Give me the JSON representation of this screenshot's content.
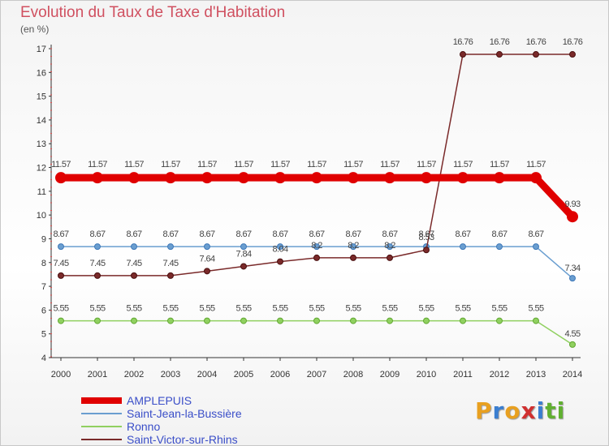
{
  "header": {
    "title": "Evolution du Taux de Taxe d'Habitation",
    "subtitle": "(en %)"
  },
  "chart_data": {
    "type": "line",
    "title": "Evolution du Taux de Taxe d'Habitation",
    "ylabel": "(en %)",
    "xlabel": "",
    "ylim": [
      4,
      17
    ],
    "yticks": [
      4,
      5,
      6,
      7,
      8,
      9,
      10,
      11,
      12,
      13,
      14,
      15,
      16,
      17
    ],
    "x": [
      2000,
      2001,
      2002,
      2003,
      2004,
      2005,
      2006,
      2007,
      2008,
      2009,
      2010,
      2011,
      2012,
      2013,
      2014
    ],
    "grid": false,
    "series": [
      {
        "name": "AMPLEPUIS",
        "color": "#e00000",
        "values": [
          11.57,
          11.57,
          11.57,
          11.57,
          11.57,
          11.57,
          11.57,
          11.57,
          11.57,
          11.57,
          11.57,
          11.57,
          11.57,
          11.57,
          9.93
        ],
        "labels": [
          "11.57",
          "11.57",
          "11.57",
          "11.57",
          "11.57",
          "11.57",
          "11.57",
          "11.57",
          "11.57",
          "11.57",
          "11.57",
          "11.57",
          "11.57",
          "11.57",
          "9.93"
        ]
      },
      {
        "name": "Saint-Jean-la-Bussière",
        "color": "#6a9ed0",
        "values": [
          8.67,
          8.67,
          8.67,
          8.67,
          8.67,
          8.67,
          8.67,
          8.67,
          8.67,
          8.67,
          8.67,
          8.67,
          8.67,
          8.67,
          7.34
        ],
        "labels": [
          "8.67",
          "8.67",
          "8.67",
          "8.67",
          "8.67",
          "8.67",
          "8.67",
          "8.67",
          "8.67",
          "8.67",
          "8.67",
          "8.67",
          "8.67",
          "8.67",
          "7.34"
        ]
      },
      {
        "name": "Ronno",
        "color": "#90d060",
        "values": [
          5.55,
          5.55,
          5.55,
          5.55,
          5.55,
          5.55,
          5.55,
          5.55,
          5.55,
          5.55,
          5.55,
          5.55,
          5.55,
          5.55,
          4.55
        ],
        "labels": [
          "5.55",
          "5.55",
          "5.55",
          "5.55",
          "5.55",
          "5.55",
          "5.55",
          "5.55",
          "5.55",
          "5.55",
          "5.55",
          "5.55",
          "5.55",
          "5.55",
          "4.55"
        ]
      },
      {
        "name": "Saint-Victor-sur-Rhins",
        "color": "#7a2a2a",
        "values": [
          7.45,
          7.45,
          7.45,
          7.45,
          7.64,
          7.84,
          8.04,
          8.2,
          8.2,
          8.2,
          8.53,
          16.76,
          16.76,
          16.76,
          16.76
        ],
        "labels": [
          "7.45",
          "7.45",
          "7.45",
          "7.45",
          "7.64",
          "7.84",
          "8.04",
          "8.2",
          "8.2",
          "8.2",
          "8.53",
          "16.76",
          "16.76",
          "16.76",
          "16.76"
        ]
      }
    ],
    "legend": "bottom-left"
  },
  "logo": {
    "letters": [
      "P",
      "r",
      "o",
      "x",
      "i",
      "t",
      "i"
    ],
    "colors": [
      "#e8a020",
      "#3a7ed0",
      "#e8a020",
      "#d03030",
      "#3a7ed0",
      "#60b030",
      "#60b030"
    ]
  }
}
